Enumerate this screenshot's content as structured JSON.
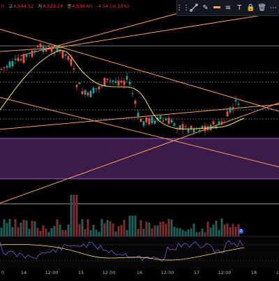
{
  "ohlc": {
    "open_partial": "0",
    "high_label": "고",
    "high_value": "4,544.52",
    "low_label": "저",
    "low_value": "4,529.24",
    "close_label": "종",
    "close_value": "4,538.60",
    "change": "-4.54 (-0.10%)"
  },
  "toolbar": {
    "items": [
      {
        "name": "drag-handle-icon",
        "glyph": "⋮⋮"
      },
      {
        "name": "trend-line-tool-icon",
        "glyph": "line"
      },
      {
        "name": "pencil-tool-icon",
        "glyph": "✎"
      },
      {
        "name": "color-swatch-icon",
        "glyph": "▬"
      },
      {
        "name": "line-style-icon",
        "glyph": "≡"
      },
      {
        "name": "text-tool-icon",
        "glyph": "T"
      },
      {
        "name": "lock-icon",
        "glyph": "🔒"
      },
      {
        "name": "delete-icon",
        "glyph": "🗑"
      },
      {
        "name": "more-icon",
        "glyph": "⋯"
      }
    ]
  },
  "x_axis_labels": [
    "0",
    "14",
    "12:00",
    "15",
    "12:00",
    "16",
    "12:00",
    "17",
    "12:00",
    "18",
    "1"
  ],
  "badge_text": "2",
  "colors": {
    "up": "#26a69a",
    "down": "#ef5350",
    "trendline": "#f7a35c",
    "ma": "#f5e663",
    "zone": "#3c1a4a",
    "zone_border": "#a05cc4",
    "rsi": "#7e57c2"
  }
}
